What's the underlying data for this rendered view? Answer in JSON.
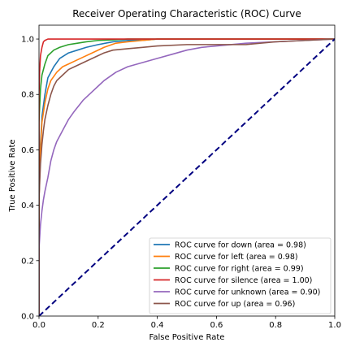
{
  "chart_data": {
    "type": "line",
    "title": "Receiver Operating Characteristic (ROC) Curve",
    "xlabel": "False Positive Rate",
    "ylabel": "True Positive Rate",
    "xlim": [
      0.0,
      1.0
    ],
    "ylim": [
      0.0,
      1.05
    ],
    "xticks": [
      0.0,
      0.2,
      0.4,
      0.6,
      0.8,
      1.0
    ],
    "yticks": [
      0.0,
      0.2,
      0.4,
      0.6,
      0.8,
      1.0
    ],
    "xtick_labels": [
      "0.0",
      "0.2",
      "0.4",
      "0.6",
      "0.8",
      "1.0"
    ],
    "ytick_labels": [
      "0.0",
      "0.2",
      "0.4",
      "0.6",
      "0.8",
      "1.0"
    ],
    "grid": false,
    "legend_position": "lower-right",
    "series": [
      {
        "name": "ROC curve for down (area = 0.98)",
        "color": "#1f77b4",
        "x": [
          0.0,
          0.0,
          0.005,
          0.01,
          0.02,
          0.03,
          0.05,
          0.07,
          0.1,
          0.13,
          0.16,
          0.2,
          0.25,
          0.3,
          0.35,
          0.4,
          0.5,
          0.6,
          0.8,
          1.0
        ],
        "y": [
          0.0,
          0.42,
          0.62,
          0.72,
          0.8,
          0.86,
          0.9,
          0.93,
          0.95,
          0.96,
          0.97,
          0.98,
          0.99,
          0.995,
          0.995,
          1.0,
          1.0,
          1.0,
          1.0,
          1.0
        ]
      },
      {
        "name": "ROC curve for left (area = 0.98)",
        "color": "#ff7f0e",
        "x": [
          0.0,
          0.0,
          0.005,
          0.01,
          0.02,
          0.03,
          0.04,
          0.06,
          0.08,
          0.1,
          0.12,
          0.15,
          0.18,
          0.22,
          0.26,
          0.3,
          0.35,
          0.4,
          0.5,
          0.6,
          0.8,
          1.0
        ],
        "y": [
          0.0,
          0.42,
          0.6,
          0.7,
          0.77,
          0.82,
          0.85,
          0.88,
          0.9,
          0.91,
          0.92,
          0.935,
          0.95,
          0.97,
          0.985,
          0.99,
          0.995,
          1.0,
          1.0,
          1.0,
          1.0,
          1.0
        ]
      },
      {
        "name": "ROC curve for right (area = 0.99)",
        "color": "#2ca02c",
        "x": [
          0.0,
          0.0,
          0.005,
          0.01,
          0.02,
          0.03,
          0.05,
          0.07,
          0.1,
          0.13,
          0.16,
          0.2,
          0.25,
          0.3,
          0.4,
          0.6,
          0.8,
          1.0
        ],
        "y": [
          0.0,
          0.7,
          0.82,
          0.87,
          0.91,
          0.94,
          0.96,
          0.97,
          0.98,
          0.985,
          0.99,
          0.995,
          0.997,
          1.0,
          1.0,
          1.0,
          1.0,
          1.0
        ]
      },
      {
        "name": "ROC curve for silence (area = 1.00)",
        "color": "#d62728",
        "x": [
          0.0,
          0.0,
          0.002,
          0.005,
          0.01,
          0.015,
          0.02,
          0.03,
          0.1,
          1.0
        ],
        "y": [
          0.0,
          0.8,
          0.88,
          0.94,
          0.97,
          0.99,
          0.995,
          1.0,
          1.0,
          1.0
        ]
      },
      {
        "name": "ROC curve for unknown (area = 0.90)",
        "color": "#9467bd",
        "x": [
          0.0,
          0.0,
          0.005,
          0.01,
          0.015,
          0.02,
          0.03,
          0.04,
          0.05,
          0.06,
          0.08,
          0.1,
          0.12,
          0.15,
          0.18,
          0.2,
          0.22,
          0.26,
          0.3,
          0.35,
          0.4,
          0.45,
          0.5,
          0.55,
          0.6,
          0.7,
          0.8,
          0.9,
          1.0
        ],
        "y": [
          0.0,
          0.24,
          0.33,
          0.38,
          0.42,
          0.45,
          0.5,
          0.56,
          0.6,
          0.63,
          0.67,
          0.71,
          0.74,
          0.78,
          0.81,
          0.83,
          0.85,
          0.88,
          0.9,
          0.915,
          0.93,
          0.945,
          0.96,
          0.97,
          0.975,
          0.985,
          0.99,
          0.995,
          1.0
        ]
      },
      {
        "name": "ROC curve for up (area = 0.96)",
        "color": "#8c564b",
        "x": [
          0.0,
          0.0,
          0.005,
          0.01,
          0.015,
          0.02,
          0.03,
          0.04,
          0.05,
          0.06,
          0.08,
          0.1,
          0.12,
          0.15,
          0.18,
          0.2,
          0.22,
          0.25,
          0.3,
          0.35,
          0.4,
          0.5,
          0.6,
          0.7,
          0.8,
          0.9,
          1.0
        ],
        "y": [
          0.0,
          0.42,
          0.55,
          0.62,
          0.67,
          0.71,
          0.76,
          0.8,
          0.83,
          0.85,
          0.87,
          0.89,
          0.9,
          0.915,
          0.93,
          0.94,
          0.95,
          0.96,
          0.965,
          0.97,
          0.975,
          0.98,
          0.98,
          0.98,
          0.99,
          0.995,
          1.0
        ]
      },
      {
        "name": "",
        "color": "#000080",
        "dashed": true,
        "x": [
          0.0,
          1.0
        ],
        "y": [
          0.0,
          1.0
        ]
      }
    ]
  }
}
